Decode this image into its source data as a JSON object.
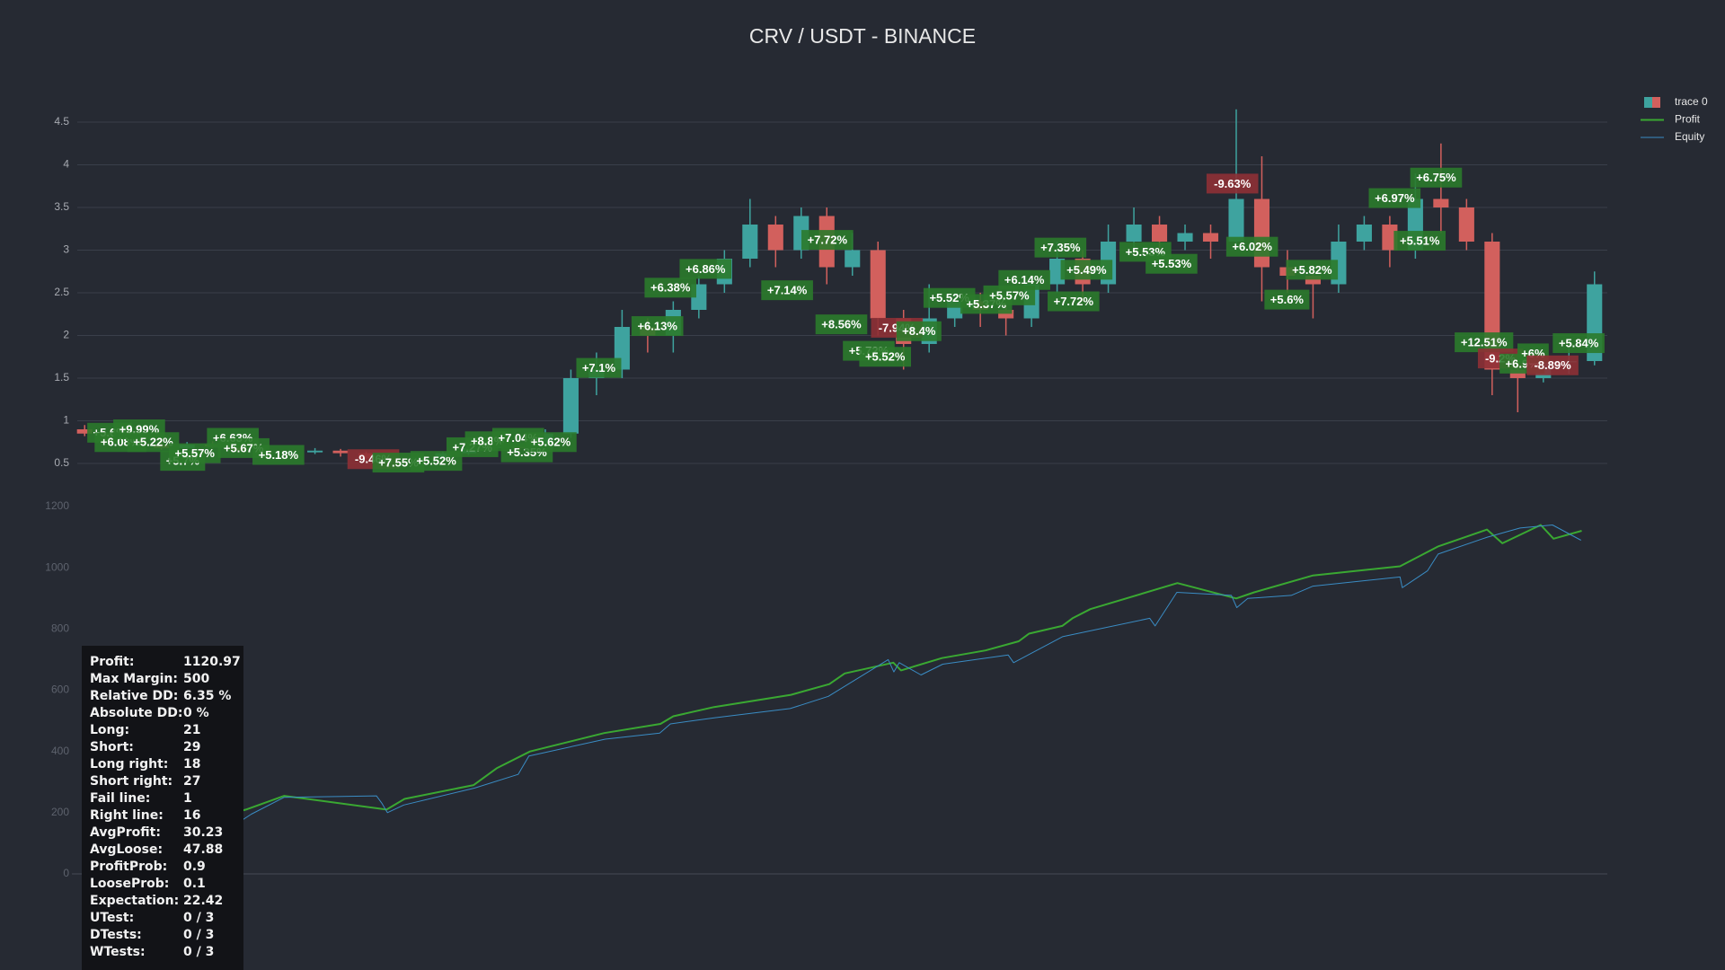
{
  "chart_data": [
    {
      "type": "candlestick",
      "title": "CRV / USDT - BINANCE",
      "legend": "top-right",
      "grid": true,
      "xlim": [
        -0.5,
        59.5
      ],
      "ylim": [
        0.3,
        4.7
      ],
      "yticks": [
        0.5,
        1,
        1.5,
        2,
        2.5,
        3,
        3.5,
        4,
        4.5
      ],
      "series": [
        {
          "name": "trace 0",
          "increasing_color": "#3ea39f",
          "decreasing_color": "#d2605d",
          "open": [
            0.9,
            0.85,
            0.78,
            0.72,
            0.68,
            0.72,
            0.7,
            0.65,
            0.62,
            0.63,
            0.65,
            0.62,
            0.56,
            0.55,
            0.57,
            0.62,
            0.68,
            0.7,
            0.68,
            0.85,
            1.5,
            1.6,
            2.1,
            2.0,
            2.3,
            2.6,
            2.9,
            3.3,
            3.0,
            3.4,
            2.8,
            3.0,
            2.2,
            1.9,
            2.2,
            2.4,
            2.3,
            2.2,
            2.6,
            2.9,
            2.6,
            3.1,
            3.3,
            3.1,
            3.2,
            3.1,
            3.6,
            2.8,
            2.7,
            2.6,
            3.1,
            3.3,
            3.0,
            3.6,
            3.5,
            3.1,
            1.6,
            1.5,
            1.7,
            1.7
          ],
          "high": [
            0.95,
            0.9,
            0.82,
            0.76,
            0.75,
            0.76,
            0.72,
            0.68,
            0.66,
            0.68,
            0.67,
            0.64,
            0.58,
            0.6,
            0.64,
            0.7,
            0.73,
            0.72,
            0.9,
            1.6,
            1.8,
            2.3,
            2.2,
            2.4,
            2.7,
            3.0,
            3.6,
            3.4,
            3.5,
            3.5,
            3.2,
            3.1,
            2.3,
            2.6,
            2.5,
            2.5,
            2.4,
            2.7,
            3.1,
            3.0,
            3.3,
            3.5,
            3.4,
            3.3,
            3.3,
            4.65,
            4.1,
            3.0,
            2.8,
            3.3,
            3.4,
            3.4,
            3.9,
            4.25,
            3.6,
            3.2,
            1.8,
            1.8,
            1.85,
            2.75
          ],
          "low": [
            0.82,
            0.76,
            0.7,
            0.66,
            0.66,
            0.68,
            0.63,
            0.6,
            0.6,
            0.61,
            0.58,
            0.53,
            0.5,
            0.52,
            0.55,
            0.6,
            0.66,
            0.65,
            0.66,
            0.8,
            1.3,
            1.5,
            1.8,
            1.8,
            2.2,
            2.5,
            2.8,
            2.8,
            2.9,
            2.6,
            2.7,
            2.0,
            1.6,
            1.8,
            2.1,
            2.1,
            2.0,
            2.1,
            2.5,
            2.4,
            2.5,
            3.0,
            3.0,
            3.0,
            2.9,
            3.0,
            2.4,
            2.5,
            2.2,
            2.5,
            3.0,
            2.8,
            2.9,
            3.2,
            3.0,
            1.3,
            1.1,
            1.45,
            1.55,
            1.65
          ],
          "close": [
            0.85,
            0.78,
            0.72,
            0.68,
            0.72,
            0.7,
            0.65,
            0.62,
            0.63,
            0.65,
            0.62,
            0.56,
            0.55,
            0.57,
            0.62,
            0.68,
            0.7,
            0.68,
            0.85,
            1.5,
            1.6,
            2.1,
            2.0,
            2.3,
            2.6,
            2.9,
            3.3,
            3.0,
            3.4,
            2.8,
            3.0,
            2.2,
            1.9,
            2.2,
            2.4,
            2.3,
            2.2,
            2.6,
            2.9,
            2.6,
            3.1,
            3.3,
            3.1,
            3.2,
            3.1,
            3.6,
            2.8,
            2.7,
            2.6,
            3.1,
            3.3,
            3.0,
            3.6,
            3.5,
            3.1,
            1.6,
            1.5,
            1.7,
            1.7,
            2.6
          ]
        }
      ],
      "annotation_colors": {
        "gain": "#2b7a2b",
        "loss": "#8e3035"
      },
      "annotations": [
        {
          "text": "+5.6%",
          "x": 0.98,
          "y": 0.86,
          "kind": "gain"
        },
        {
          "text": "+6.08%",
          "x": 1.4,
          "y": 0.75,
          "kind": "gain"
        },
        {
          "text": "+9.99%",
          "x": 2.13,
          "y": 0.9,
          "kind": "gain"
        },
        {
          "text": "+5.22%",
          "x": 2.68,
          "y": 0.75,
          "kind": "gain"
        },
        {
          "text": "+5.7%",
          "x": 3.83,
          "y": 0.53,
          "kind": "gain"
        },
        {
          "text": "+5.57%",
          "x": 4.3,
          "y": 0.62,
          "kind": "gain"
        },
        {
          "text": "+6.63%",
          "x": 5.79,
          "y": 0.8,
          "kind": "gain"
        },
        {
          "text": "+5.67%",
          "x": 6.21,
          "y": 0.68,
          "kind": "gain"
        },
        {
          "text": "+5.18%",
          "x": 7.57,
          "y": 0.6,
          "kind": "gain"
        },
        {
          "text": "-9.46%",
          "x": 11.28,
          "y": 0.55,
          "kind": "loss"
        },
        {
          "text": "+7.55%",
          "x": 12.26,
          "y": 0.51,
          "kind": "gain"
        },
        {
          "text": "+5.52%",
          "x": 13.74,
          "y": 0.53,
          "kind": "gain"
        },
        {
          "text": "+7.27%",
          "x": 15.15,
          "y": 0.69,
          "kind": "gain"
        },
        {
          "text": "+8.8%",
          "x": 15.74,
          "y": 0.76,
          "kind": "gain"
        },
        {
          "text": "+7.04%",
          "x": 16.94,
          "y": 0.8,
          "kind": "gain"
        },
        {
          "text": "+5.35%",
          "x": 17.28,
          "y": 0.63,
          "kind": "gain"
        },
        {
          "text": "+5.62%",
          "x": 18.21,
          "y": 0.75,
          "kind": "gain"
        },
        {
          "text": "+7.1%",
          "x": 20.09,
          "y": 1.62,
          "kind": "gain"
        },
        {
          "text": "+6.13%",
          "x": 22.38,
          "y": 2.11,
          "kind": "gain"
        },
        {
          "text": "+6.38%",
          "x": 22.89,
          "y": 2.56,
          "kind": "gain"
        },
        {
          "text": "+6.86%",
          "x": 24.26,
          "y": 2.78,
          "kind": "gain"
        },
        {
          "text": "+7.14%",
          "x": 27.45,
          "y": 2.53,
          "kind": "gain"
        },
        {
          "text": "+7.72%",
          "x": 29.02,
          "y": 3.12,
          "kind": "gain"
        },
        {
          "text": "+8.56%",
          "x": 29.57,
          "y": 2.13,
          "kind": "gain"
        },
        {
          "text": "+5.72%",
          "x": 30.64,
          "y": 1.82,
          "kind": "gain"
        },
        {
          "text": "+5.52%",
          "x": 31.28,
          "y": 1.75,
          "kind": "gain"
        },
        {
          "text": "-7.94%",
          "x": 31.74,
          "y": 2.09,
          "kind": "loss"
        },
        {
          "text": "+8.4%",
          "x": 32.6,
          "y": 2.05,
          "kind": "gain"
        },
        {
          "text": "+5.52%",
          "x": 33.79,
          "y": 2.44,
          "kind": "gain"
        },
        {
          "text": "+5.37%",
          "x": 35.23,
          "y": 2.37,
          "kind": "gain"
        },
        {
          "text": "+5.57%",
          "x": 36.13,
          "y": 2.47,
          "kind": "gain"
        },
        {
          "text": "+6.14%",
          "x": 36.72,
          "y": 2.65,
          "kind": "gain"
        },
        {
          "text": "+7.35%",
          "x": 38.13,
          "y": 3.03,
          "kind": "gain"
        },
        {
          "text": "+7.72%",
          "x": 38.64,
          "y": 2.4,
          "kind": "gain"
        },
        {
          "text": "+5.49%",
          "x": 39.15,
          "y": 2.77,
          "kind": "gain"
        },
        {
          "text": "+5.53%",
          "x": 41.45,
          "y": 2.98,
          "kind": "gain"
        },
        {
          "text": "+5.53%",
          "x": 42.47,
          "y": 2.84,
          "kind": "gain"
        },
        {
          "text": "-9.63%",
          "x": 44.85,
          "y": 3.78,
          "kind": "loss"
        },
        {
          "text": "+6.02%",
          "x": 45.62,
          "y": 3.04,
          "kind": "gain"
        },
        {
          "text": "+5.6%",
          "x": 46.98,
          "y": 2.42,
          "kind": "gain"
        },
        {
          "text": "+5.82%",
          "x": 47.96,
          "y": 2.77,
          "kind": "gain"
        },
        {
          "text": "+6.97%",
          "x": 51.19,
          "y": 3.61,
          "kind": "gain"
        },
        {
          "text": "+5.51%",
          "x": 52.17,
          "y": 3.11,
          "kind": "gain"
        },
        {
          "text": "+6.75%",
          "x": 52.81,
          "y": 3.85,
          "kind": "gain"
        },
        {
          "text": "+12.51%",
          "x": 54.68,
          "y": 1.92,
          "kind": "gain"
        },
        {
          "text": "-9.2%",
          "x": 55.32,
          "y": 1.73,
          "kind": "loss"
        },
        {
          "text": "+6.9%",
          "x": 56.17,
          "y": 1.67,
          "kind": "gain"
        },
        {
          "text": "+6%",
          "x": 56.6,
          "y": 1.79,
          "kind": "gain"
        },
        {
          "text": "-8.89%",
          "x": 57.36,
          "y": 1.65,
          "kind": "loss"
        },
        {
          "text": "+5.84%",
          "x": 58.38,
          "y": 1.91,
          "kind": "gain"
        }
      ]
    },
    {
      "type": "line",
      "grid": false,
      "xlim": [
        -0.5,
        59.5
      ],
      "ylim": [
        -50,
        1250
      ],
      "yticks": [
        0,
        200,
        400,
        600,
        800,
        1000,
        1200
      ],
      "series": [
        {
          "name": "Profit",
          "color": "#3aa832",
          "width": 2,
          "x": [
            3.3,
            6.3,
            7.8,
            11.8,
            12.5,
            15.2,
            16.1,
            17.4,
            20.3,
            22.5,
            23.0,
            24.6,
            27.6,
            29.1,
            29.7,
            31.6,
            31.9,
            33.5,
            35.2,
            36.5,
            36.9,
            38.2,
            38.6,
            39.3,
            42.7,
            45.0,
            45.7,
            48.0,
            51.4,
            52.9,
            54.8,
            55.4,
            56.9,
            57.4,
            58.5
          ],
          "values": [
            140,
            210,
            255,
            210,
            245,
            290,
            345,
            400,
            460,
            490,
            515,
            545,
            585,
            620,
            655,
            690,
            665,
            705,
            730,
            760,
            785,
            810,
            835,
            865,
            950,
            900,
            920,
            975,
            1005,
            1070,
            1125,
            1080,
            1140,
            1095,
            1121
          ]
        },
        {
          "name": "Equity",
          "color": "#3a8cc4",
          "width": 1,
          "x": [
            3.32,
            5.87,
            6.51,
            7.79,
            11.4,
            11.62,
            11.83,
            12.47,
            15.23,
            16.94,
            17.36,
            20.34,
            22.47,
            22.89,
            24.6,
            27.57,
            29.06,
            31.4,
            31.62,
            31.83,
            32.68,
            33.53,
            36.09,
            36.3,
            38.21,
            41.62,
            41.83,
            42.68,
            44.81,
            45.02,
            45.45,
            47.15,
            48.0,
            51.4,
            51.49,
            52.47,
            52.89,
            54.81,
            56.09,
            57.36,
            58.47
          ],
          "values": [
            130,
            160,
            195,
            250,
            255,
            230,
            200,
            225,
            280,
            325,
            385,
            440,
            460,
            490,
            510,
            540,
            580,
            700,
            660,
            690,
            650,
            685,
            715,
            690,
            775,
            835,
            810,
            920,
            910,
            870,
            900,
            910,
            940,
            970,
            935,
            990,
            1045,
            1100,
            1130,
            1140,
            1090
          ]
        }
      ]
    }
  ],
  "stats": [
    {
      "label": "Profit:",
      "value": "1120.97"
    },
    {
      "label": "Max Margin:",
      "value": "500"
    },
    {
      "label": "Relative DD:",
      "value": "6.35 %"
    },
    {
      "label": "Absolute DD:",
      "value": "0 %"
    },
    {
      "label": "Long:",
      "value": "21"
    },
    {
      "label": "Short:",
      "value": "29"
    },
    {
      "label": "Long right:",
      "value": "18"
    },
    {
      "label": "Short right:",
      "value": "27"
    },
    {
      "label": "Fail line:",
      "value": "1"
    },
    {
      "label": "Right line:",
      "value": "16"
    },
    {
      "label": "AvgProfit:",
      "value": "30.23"
    },
    {
      "label": "AvgLoose:",
      "value": "47.88"
    },
    {
      "label": "ProfitProb:",
      "value": "0.9"
    },
    {
      "label": "LooseProb:",
      "value": "0.1"
    },
    {
      "label": "Expectation:",
      "value": "22.42"
    },
    {
      "label": "UTest:",
      "value": "0 / 3"
    },
    {
      "label": "DTests:",
      "value": "0 / 3"
    },
    {
      "label": "WTests:",
      "value": "0 / 3"
    }
  ]
}
